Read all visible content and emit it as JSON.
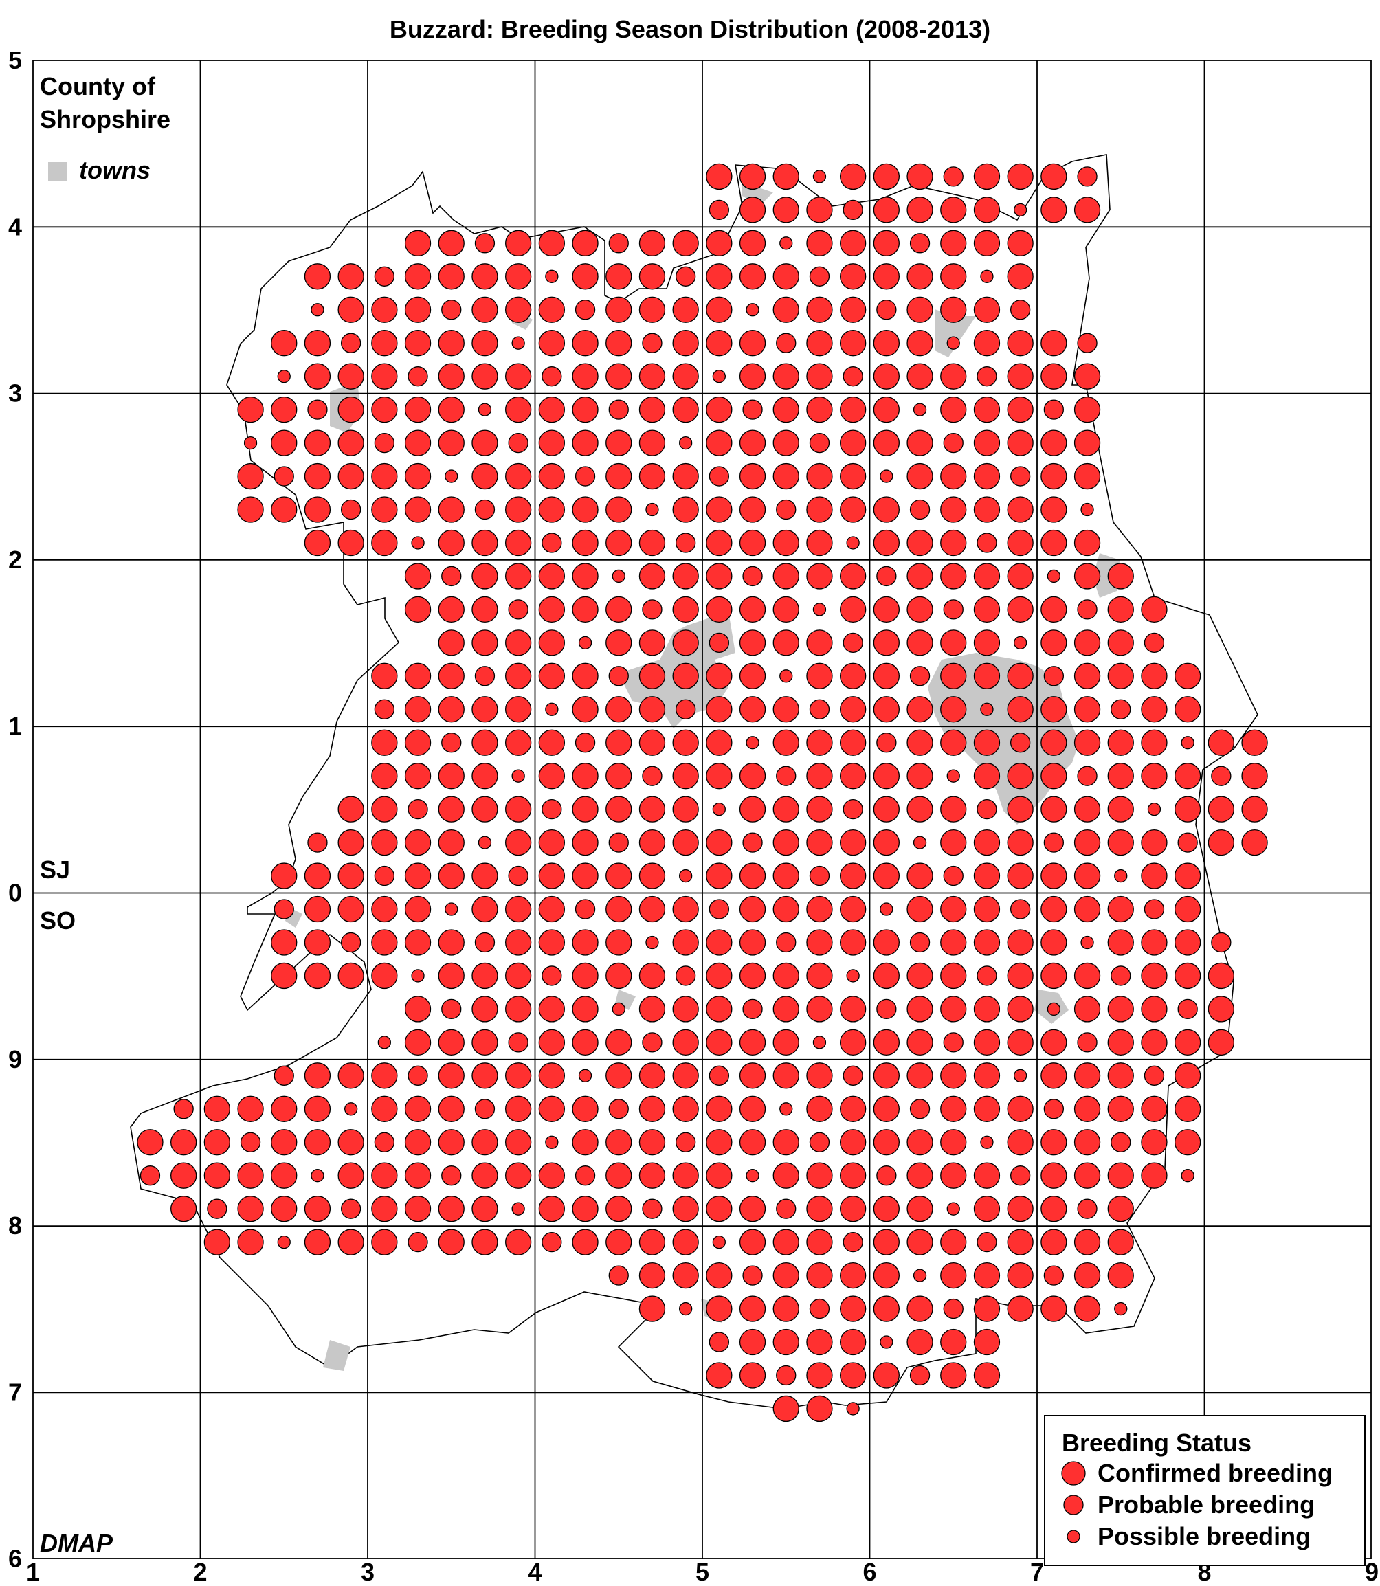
{
  "title": "Buzzard: Breeding Season Distribution (2008-2013)",
  "county_label_line1": "County of",
  "county_label_line2": "Shropshire",
  "towns_label": "towns",
  "credit": "DMAP",
  "grid_square_north": "SJ",
  "grid_square_south": "SO",
  "x_ticks": [
    "1",
    "2",
    "3",
    "4",
    "5",
    "6",
    "7",
    "8",
    "9"
  ],
  "y_ticks": [
    "5",
    "4",
    "3",
    "2",
    "1",
    "0",
    "9",
    "8",
    "7",
    "6"
  ],
  "legend": {
    "title": "Breeding Status",
    "items": [
      {
        "label": "Confirmed breeding",
        "status": "confirmed"
      },
      {
        "label": "Probable breeding",
        "status": "probable"
      },
      {
        "label": "Possible breeding",
        "status": "possible"
      }
    ]
  },
  "colors": {
    "dot": "#ff3030",
    "town": "#c8c8c8",
    "grid": "#000000"
  },
  "chart_data": {
    "type": "scatter",
    "x_range": [
      1,
      9
    ],
    "y_range_ticks": [
      "5",
      "4",
      "3",
      "2",
      "1",
      "0",
      "9",
      "8",
      "7",
      "6"
    ],
    "tetrad_size_km": 2,
    "dominant_status": "confirmed",
    "rows_S_to_N": [
      {
        "y_km": 20.9,
        "x_from": 5.5,
        "x_to": 5.9
      },
      {
        "y_km": 21.1,
        "x_from": 5.1,
        "x_to": 6.7
      },
      {
        "y_km": 21.3,
        "x_from": 5.1,
        "x_to": 6.7
      },
      {
        "y_km": 21.5,
        "x_from": 4.7,
        "x_to": 7.5
      },
      {
        "y_km": 21.7,
        "x_from": 4.5,
        "x_to": 7.5
      },
      {
        "y_km": 21.9,
        "x_from": 2.1,
        "x_to": 7.5
      },
      {
        "y_km": 22.1,
        "x_from": 1.9,
        "x_to": 7.5
      },
      {
        "y_km": 22.3,
        "x_from": 1.7,
        "x_to": 7.9
      },
      {
        "y_km": 22.5,
        "x_from": 1.7,
        "x_to": 7.9
      },
      {
        "y_km": 22.7,
        "x_from": 1.9,
        "x_to": 7.9
      },
      {
        "y_km": 22.9,
        "x_from": 2.5,
        "x_to": 7.9
      },
      {
        "y_km": 23.1,
        "x_from": 3.1,
        "x_to": 8.1
      },
      {
        "y_km": 23.3,
        "x_from": 3.3,
        "x_to": 8.1
      },
      {
        "y_km": 23.5,
        "x_from": 2.5,
        "x_to": 8.1
      },
      {
        "y_km": 23.7,
        "x_from": 2.5,
        "x_to": 8.1
      },
      {
        "y_km": 23.9,
        "x_from": 2.5,
        "x_to": 7.9
      },
      {
        "y_km": 24.1,
        "x_from": 2.5,
        "x_to": 7.9
      },
      {
        "y_km": 24.3,
        "x_from": 2.7,
        "x_to": 8.3
      },
      {
        "y_km": 24.5,
        "x_from": 2.9,
        "x_to": 8.3
      },
      {
        "y_km": 24.7,
        "x_from": 3.1,
        "x_to": 8.3
      },
      {
        "y_km": 24.9,
        "x_from": 3.1,
        "x_to": 8.3
      },
      {
        "y_km": 25.1,
        "x_from": 3.1,
        "x_to": 7.9
      },
      {
        "y_km": 25.3,
        "x_from": 3.1,
        "x_to": 7.9
      },
      {
        "y_km": 25.5,
        "x_from": 3.5,
        "x_to": 7.7
      },
      {
        "y_km": 25.7,
        "x_from": 3.3,
        "x_to": 7.7
      },
      {
        "y_km": 25.9,
        "x_from": 3.3,
        "x_to": 7.5
      },
      {
        "y_km": 26.1,
        "x_from": 2.7,
        "x_to": 7.3
      },
      {
        "y_km": 26.3,
        "x_from": 2.3,
        "x_to": 7.3
      },
      {
        "y_km": 26.5,
        "x_from": 2.3,
        "x_to": 7.3
      },
      {
        "y_km": 26.7,
        "x_from": 2.3,
        "x_to": 7.3
      },
      {
        "y_km": 26.9,
        "x_from": 2.3,
        "x_to": 7.3
      },
      {
        "y_km": 27.1,
        "x_from": 2.5,
        "x_to": 7.3
      },
      {
        "y_km": 27.3,
        "x_from": 2.5,
        "x_to": 7.3
      },
      {
        "y_km": 27.5,
        "x_from": 2.7,
        "x_to": 6.9
      },
      {
        "y_km": 27.7,
        "x_from": 2.7,
        "x_to": 6.9
      },
      {
        "y_km": 27.9,
        "x_from": 3.3,
        "x_to": 6.9
      },
      {
        "y_km": 28.1,
        "x_from": 5.1,
        "x_to": 7.3
      },
      {
        "y_km": 28.3,
        "x_from": 5.1,
        "x_to": 7.3
      }
    ]
  }
}
